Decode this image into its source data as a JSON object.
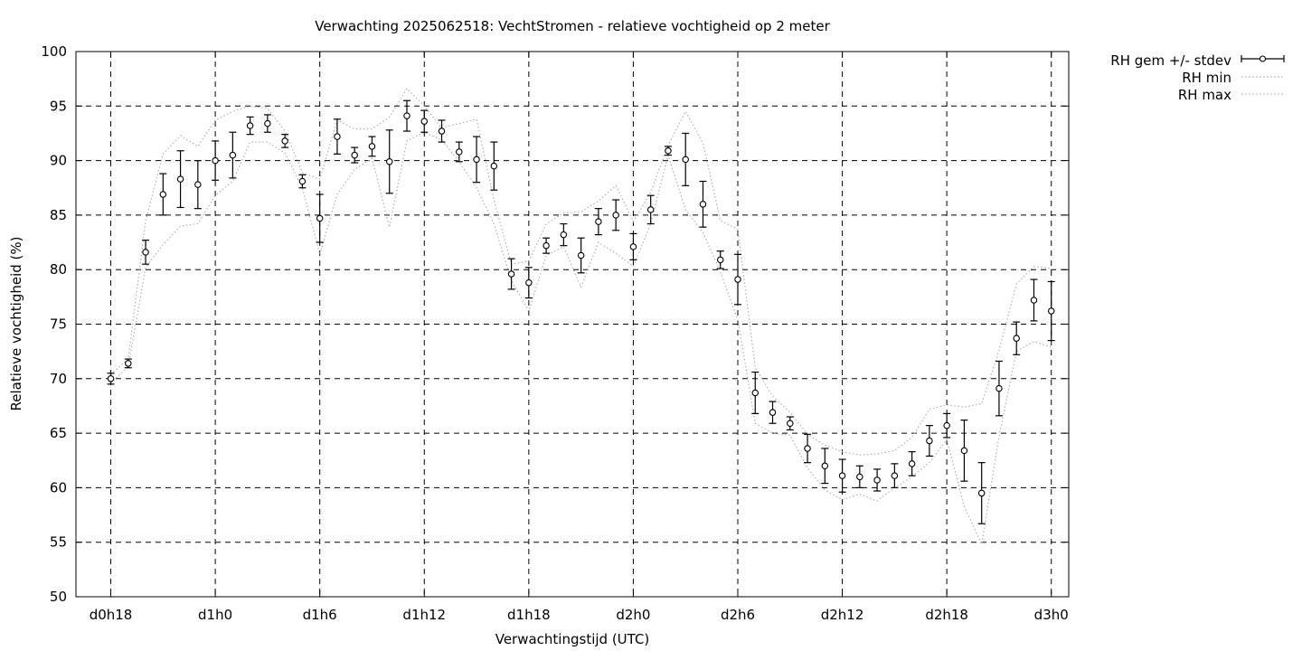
{
  "chart_data": {
    "type": "line",
    "title": "Verwachting 2025062518: VechtStromen - relatieve vochtigheid op 2 meter",
    "xlabel": "Verwachtingstijd (UTC)",
    "ylabel": "Relatieve vochtigheid (%)",
    "ylim": [
      50,
      100
    ],
    "xlim": [
      16,
      73
    ],
    "yticks": [
      50,
      55,
      60,
      65,
      70,
      75,
      80,
      85,
      90,
      95,
      100
    ],
    "xticks": [
      {
        "x": 18,
        "label": "d0h18"
      },
      {
        "x": 24,
        "label": "d1h0"
      },
      {
        "x": 30,
        "label": "d1h6"
      },
      {
        "x": 36,
        "label": "d1h12"
      },
      {
        "x": 42,
        "label": "d1h18"
      },
      {
        "x": 48,
        "label": "d2h0"
      },
      {
        "x": 54,
        "label": "d2h6"
      },
      {
        "x": 60,
        "label": "d2h12"
      },
      {
        "x": 66,
        "label": "d2h18"
      },
      {
        "x": 72,
        "label": "d3h0"
      }
    ],
    "grid": true,
    "legend_position": "outside-top-right",
    "legend": [
      {
        "key": "mean",
        "label": "RH gem +/- stdev"
      },
      {
        "key": "min",
        "label": "RH min"
      },
      {
        "key": "max",
        "label": "RH max"
      }
    ],
    "x": [
      18,
      19,
      20,
      21,
      22,
      23,
      24,
      25,
      26,
      27,
      28,
      29,
      30,
      31,
      32,
      33,
      34,
      35,
      36,
      37,
      38,
      39,
      40,
      41,
      42,
      43,
      44,
      45,
      46,
      47,
      48,
      49,
      50,
      51,
      52,
      53,
      54,
      55,
      56,
      57,
      58,
      59,
      60,
      61,
      62,
      63,
      64,
      65,
      66,
      67,
      68,
      69,
      70,
      71,
      72
    ],
    "series": [
      {
        "name": "RH gem +/- stdev",
        "values": [
          70.0,
          71.4,
          81.6,
          86.9,
          88.3,
          87.8,
          90.0,
          90.5,
          93.2,
          93.4,
          91.8,
          88.1,
          84.7,
          92.2,
          90.5,
          91.3,
          89.9,
          94.1,
          93.6,
          92.7,
          90.8,
          90.1,
          89.5,
          79.6,
          78.8,
          82.2,
          83.2,
          81.3,
          84.4,
          85.0,
          82.1,
          85.5,
          90.9,
          90.1,
          86.0,
          80.9,
          79.1,
          68.7,
          66.9,
          65.9,
          63.6,
          62.0,
          61.1,
          61.0,
          60.7,
          61.1,
          62.2,
          64.3,
          65.7,
          63.4,
          59.5,
          69.1,
          73.7,
          77.2,
          76.2
        ],
        "stdev": [
          0.5,
          0.4,
          1.1,
          1.9,
          2.6,
          2.2,
          1.8,
          2.1,
          0.8,
          0.8,
          0.6,
          0.6,
          2.2,
          1.6,
          0.7,
          0.9,
          2.9,
          1.4,
          1.0,
          1.0,
          0.9,
          2.1,
          2.2,
          1.4,
          1.4,
          0.7,
          1.0,
          1.6,
          1.2,
          1.4,
          1.2,
          1.3,
          0.4,
          2.4,
          2.1,
          0.8,
          2.3,
          1.9,
          1.0,
          0.6,
          1.3,
          1.6,
          1.5,
          1.0,
          1.0,
          1.1,
          1.1,
          1.4,
          1.1,
          2.8,
          2.8,
          2.5,
          1.5,
          1.9,
          2.7
        ]
      },
      {
        "name": "RH min",
        "values": [
          69.6,
          71.1,
          80.2,
          82.3,
          84.0,
          84.2,
          86.8,
          88.1,
          91.7,
          91.7,
          90.7,
          87.5,
          81.4,
          86.9,
          89.2,
          90.2,
          83.9,
          91.8,
          92.6,
          91.9,
          89.9,
          87.5,
          84.2,
          79.0,
          76.2,
          81.3,
          82.1,
          78.4,
          82.5,
          81.5,
          80.3,
          84.2,
          90.5,
          85.5,
          83.4,
          79.8,
          75.4,
          65.9,
          65.0,
          64.8,
          61.8,
          59.8,
          58.9,
          59.4,
          58.8,
          60.0,
          61.0,
          62.3,
          64.4,
          58.3,
          54.8,
          64.7,
          72.5,
          73.4,
          72.9
        ]
      },
      {
        "name": "RH max",
        "values": [
          70.4,
          71.8,
          84.5,
          90.6,
          92.3,
          91.3,
          93.7,
          94.5,
          95.0,
          94.8,
          92.7,
          88.9,
          88.3,
          93.7,
          92.9,
          92.9,
          94.0,
          96.6,
          95.0,
          93.0,
          93.4,
          93.8,
          86.4,
          80.5,
          80.8,
          84.2,
          85.2,
          85.3,
          86.3,
          87.7,
          84.4,
          87.1,
          91.4,
          94.5,
          91.6,
          84.5,
          83.7,
          71.0,
          68.4,
          66.9,
          64.9,
          63.9,
          63.3,
          63.0,
          63.1,
          63.4,
          64.6,
          67.2,
          67.6,
          67.4,
          67.7,
          72.6,
          78.7,
          80.3,
          80.1
        ]
      }
    ]
  },
  "colors": {
    "axis": "#000000",
    "grid": "#000000",
    "series_mean": "#000000",
    "series_minmax": "#b0b0b0"
  }
}
